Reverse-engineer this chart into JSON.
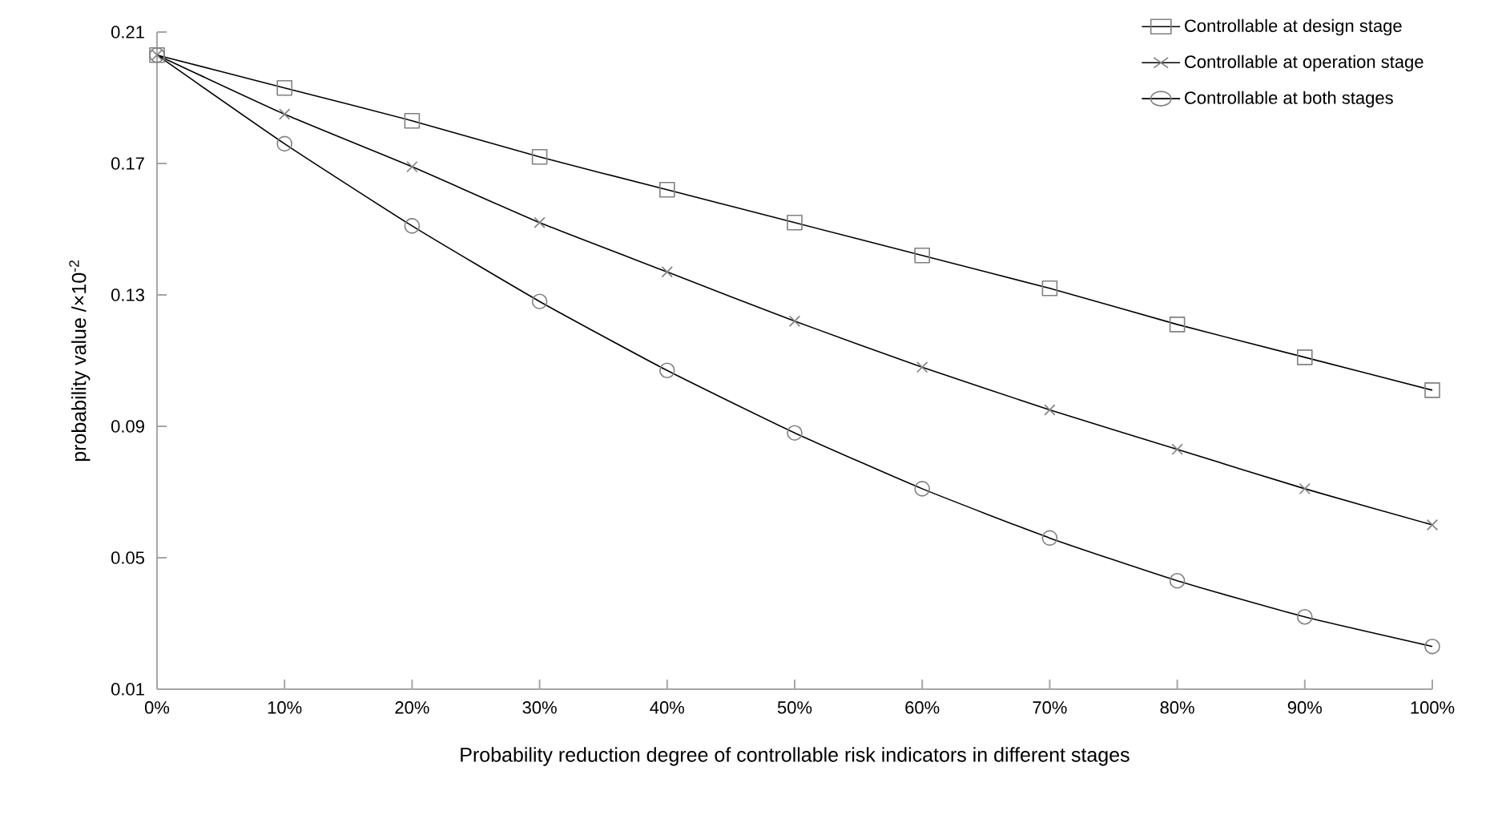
{
  "chart_data": {
    "type": "line",
    "xlabel": "Probability reduction degree of controllable risk indicators in different stages",
    "ylabel": "probability  value /×10$^{-2}$",
    "categories": [
      "0%",
      "10%",
      "20%",
      "30%",
      "40%",
      "50%",
      "60%",
      "70%",
      "80%",
      "90%",
      "100%"
    ],
    "ylim": [
      0.01,
      0.21
    ],
    "yticks": [
      0.01,
      0.05,
      0.09,
      0.13,
      0.17,
      0.21
    ],
    "grid": false,
    "legend": "top right",
    "series": [
      {
        "name": "Controllable at design stage",
        "color": "#000000",
        "marker": "square",
        "values": [
          0.203,
          0.193,
          0.183,
          0.172,
          0.162,
          0.152,
          0.142,
          0.132,
          0.121,
          0.111,
          0.101
        ]
      },
      {
        "name": "Controllable at operation stage",
        "color": "#000000",
        "marker": "cross",
        "values": [
          0.203,
          0.185,
          0.169,
          0.152,
          0.137,
          0.122,
          0.108,
          0.095,
          0.083,
          0.071,
          0.06
        ]
      },
      {
        "name": "Controllable at both stages",
        "color": "#000000",
        "marker": "circle",
        "values": [
          0.203,
          0.176,
          0.151,
          0.128,
          0.107,
          0.088,
          0.071,
          0.056,
          0.043,
          0.032,
          0.023
        ]
      }
    ]
  }
}
